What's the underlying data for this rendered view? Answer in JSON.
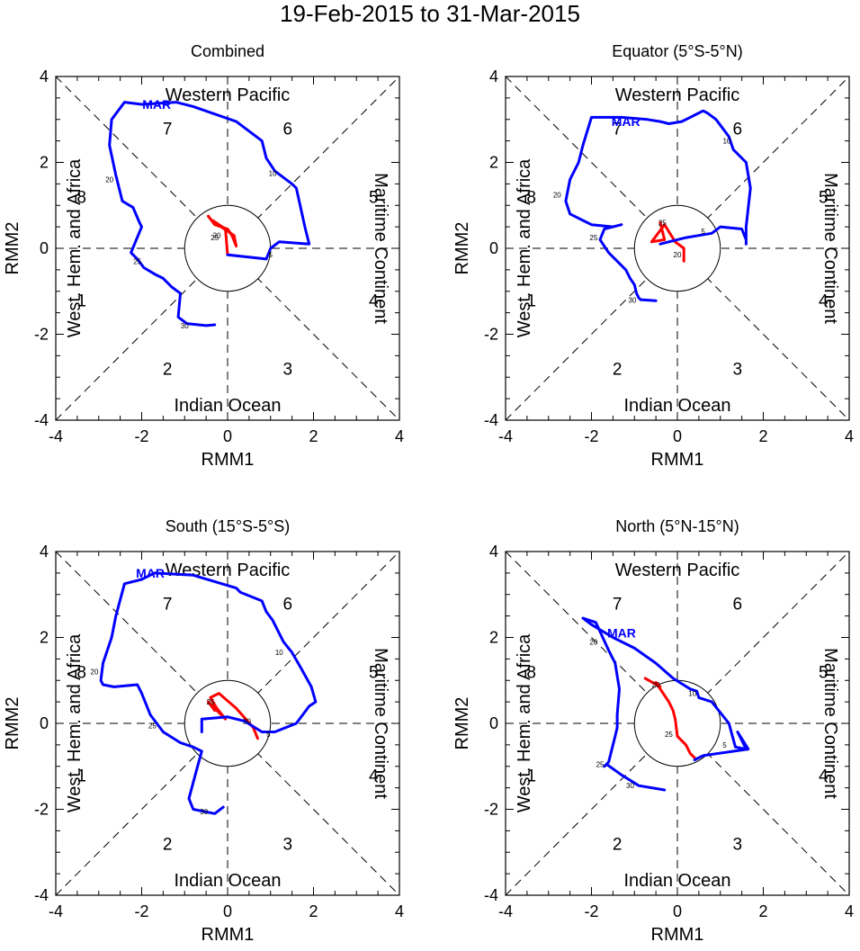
{
  "figure_title": "19-Feb-2015 to 31-Mar-2015",
  "colors": {
    "feb": "#ff0000",
    "mar": "#0000ff",
    "axis": "#000000"
  },
  "chart_data": [
    {
      "type": "line",
      "title": "Combined",
      "xlabel": "RMM1",
      "ylabel": "RMM2",
      "xlim": [
        -4,
        4
      ],
      "ylim": [
        -4,
        4
      ],
      "xticks": [
        "-4",
        "-2",
        "0",
        "2",
        "4"
      ],
      "yticks": [
        "-4",
        "-2",
        "0",
        "2",
        "4"
      ],
      "phase_numbers": [
        "1",
        "2",
        "3",
        "4",
        "5",
        "6",
        "7",
        "8"
      ],
      "region_labels": {
        "top": "Western Pacific",
        "bottom": "Indian Ocean",
        "left": "West. Hem. and Africa",
        "right": "Maritime Continent"
      },
      "month_label": "MAR",
      "month_label_pos": [
        -1.65,
        3.35
      ],
      "series": [
        {
          "name": "Feb",
          "color": "#ff0000",
          "x": [
            -0.45,
            -0.3,
            0.0,
            0.1,
            0.2,
            0.15,
            -0.15,
            -0.35,
            -0.05,
            0.0
          ],
          "y": [
            0.75,
            0.55,
            0.45,
            0.3,
            0.05,
            0.3,
            0.5,
            0.65,
            0.45,
            -0.15
          ]
        },
        {
          "name": "Mar",
          "color": "#0000ff",
          "x": [
            0.0,
            0.9,
            1.0,
            1.2,
            1.9,
            1.8,
            1.6,
            1.5,
            1.1,
            0.9,
            0.8,
            0.2,
            -0.8,
            -1.2,
            -2.0,
            -2.4,
            -2.7,
            -2.75,
            -2.6,
            -2.45,
            -2.2,
            -2.05,
            -2.0,
            -2.25,
            -2.1,
            -1.95,
            -1.7,
            -1.5,
            -1.3,
            -1.1,
            -1.15,
            -0.95,
            -0.5,
            -0.3
          ],
          "y": [
            -0.15,
            -0.25,
            0.0,
            0.15,
            0.1,
            0.5,
            1.4,
            1.5,
            1.8,
            2.1,
            2.5,
            2.95,
            3.3,
            3.4,
            3.35,
            3.4,
            3.0,
            2.4,
            1.7,
            1.1,
            0.95,
            0.6,
            0.5,
            -0.1,
            -0.25,
            -0.45,
            -0.6,
            -0.7,
            -0.9,
            -1.05,
            -1.6,
            -1.75,
            -1.8,
            -1.78
          ]
        }
      ],
      "day_labels": [
        {
          "text": "5",
          "x": 1.0,
          "y": -0.15
        },
        {
          "text": "10",
          "x": 1.05,
          "y": 1.75
        },
        {
          "text": "20",
          "x": -2.75,
          "y": 1.6
        },
        {
          "text": "25",
          "x": -2.1,
          "y": -0.3
        },
        {
          "text": "30",
          "x": -1.0,
          "y": -1.8
        },
        {
          "text": "20",
          "x": -0.25,
          "y": 0.3
        },
        {
          "text": "25",
          "x": -0.3,
          "y": 0.25
        }
      ]
    },
    {
      "type": "line",
      "title": "Equator (5°S-5°N)",
      "xlabel": "RMM1",
      "ylabel": "RMM2",
      "xlim": [
        -4,
        4
      ],
      "ylim": [
        -4,
        4
      ],
      "xticks": [
        "-4",
        "-2",
        "0",
        "2",
        "4"
      ],
      "yticks": [
        "-4",
        "-2",
        "0",
        "2",
        "4"
      ],
      "phase_numbers": [
        "1",
        "2",
        "3",
        "4",
        "5",
        "6",
        "7",
        "8"
      ],
      "region_labels": {
        "top": "Western Pacific",
        "bottom": "Indian Ocean",
        "left": "West. Hem. and Africa",
        "right": "Maritime Continent"
      },
      "month_label": "MAR",
      "month_label_pos": [
        -1.2,
        2.95
      ],
      "series": [
        {
          "name": "Feb",
          "color": "#ff0000",
          "x": [
            -0.4,
            -0.3,
            -0.6,
            -0.3,
            -0.05,
            0.15,
            0.15
          ],
          "y": [
            0.6,
            0.2,
            0.15,
            0.55,
            0.15,
            0.0,
            -0.3
          ]
        },
        {
          "name": "Mar",
          "color": "#0000ff",
          "x": [
            -0.4,
            0.2,
            0.5,
            0.8,
            1.0,
            1.5,
            1.6,
            1.6,
            1.6,
            1.7,
            1.6,
            1.3,
            1.2,
            0.9,
            0.7,
            0.6,
            0.4,
            0.1,
            -0.2,
            -0.4,
            -0.7,
            -1.3,
            -2.0,
            -2.2,
            -2.3,
            -2.5,
            -2.6,
            -2.5,
            -2.2,
            -2.0,
            -1.5,
            -1.3,
            -1.7,
            -1.8,
            -1.6,
            -1.4,
            -1.2,
            -1.1,
            -1.0,
            -0.95,
            -0.9,
            -0.85,
            -0.8,
            -0.5
          ],
          "y": [
            0.1,
            0.25,
            0.3,
            0.35,
            0.5,
            0.45,
            0.2,
            0.1,
            0.5,
            1.4,
            2.0,
            2.3,
            2.6,
            3.0,
            3.15,
            3.2,
            3.1,
            2.95,
            2.9,
            2.95,
            3.0,
            3.05,
            3.05,
            2.4,
            2.0,
            1.6,
            1.1,
            0.8,
            0.65,
            0.55,
            0.5,
            0.55,
            0.45,
            0.2,
            -0.1,
            -0.3,
            -0.5,
            -0.7,
            -0.85,
            -1.05,
            -1.15,
            -1.2,
            -1.2,
            -1.22
          ]
        }
      ],
      "day_labels": [
        {
          "text": "5",
          "x": 0.6,
          "y": 0.4
        },
        {
          "text": "10",
          "x": 1.15,
          "y": 2.5
        },
        {
          "text": "20",
          "x": -2.8,
          "y": 1.25
        },
        {
          "text": "25",
          "x": -1.95,
          "y": 0.25
        },
        {
          "text": "30",
          "x": -1.05,
          "y": -1.2
        },
        {
          "text": "25",
          "x": -0.35,
          "y": 0.6
        },
        {
          "text": "20",
          "x": 0.0,
          "y": -0.15
        }
      ]
    },
    {
      "type": "line",
      "title": "South (15°S-5°S)",
      "xlabel": "RMM1",
      "ylabel": "RMM2",
      "xlim": [
        -4,
        4
      ],
      "ylim": [
        -4,
        4
      ],
      "xticks": [
        "-4",
        "-2",
        "0",
        "2",
        "4"
      ],
      "yticks": [
        "-4",
        "-2",
        "0",
        "2",
        "4"
      ],
      "phase_numbers": [
        "1",
        "2",
        "3",
        "4",
        "5",
        "6",
        "7",
        "8"
      ],
      "region_labels": {
        "top": "Western Pacific",
        "bottom": "Indian Ocean",
        "left": "West. Hem. and Africa",
        "right": "Maritime Continent"
      },
      "month_label": "MAR",
      "month_label_pos": [
        -1.8,
        3.5
      ],
      "series": [
        {
          "name": "Feb",
          "color": "#ff0000",
          "x": [
            -0.3,
            -0.45,
            -0.05,
            -0.25,
            -0.4,
            -0.2,
            0.2,
            0.6,
            0.7
          ],
          "y": [
            0.3,
            0.5,
            0.1,
            0.35,
            0.6,
            0.7,
            0.35,
            -0.1,
            -0.35
          ]
        },
        {
          "name": "Mar",
          "color": "#0000ff",
          "x": [
            -0.6,
            -0.6,
            0.0,
            0.4,
            0.8,
            1.1,
            1.6,
            1.9,
            2.05,
            1.95,
            1.7,
            1.5,
            1.3,
            1.05,
            0.9,
            0.8,
            0.3,
            0.2,
            -0.8,
            -1.7,
            -2.0,
            -2.4,
            -2.6,
            -2.7,
            -2.9,
            -2.95,
            -2.9,
            -2.65,
            -2.1,
            -2.0,
            -1.8,
            -1.5,
            -1.1,
            -0.8,
            -0.6,
            -0.7,
            -0.9,
            -0.8,
            -0.3,
            -0.1
          ],
          "y": [
            -0.2,
            0.1,
            0.15,
            0.05,
            -0.2,
            -0.2,
            0.0,
            0.4,
            0.5,
            0.85,
            1.3,
            1.65,
            1.9,
            2.4,
            2.6,
            2.85,
            3.05,
            3.15,
            3.45,
            3.5,
            3.35,
            3.25,
            2.5,
            2.0,
            1.4,
            1.0,
            0.9,
            0.85,
            0.9,
            0.7,
            0.2,
            -0.2,
            -0.45,
            -0.55,
            -0.65,
            -1.0,
            -1.75,
            -2.0,
            -2.1,
            -1.95
          ]
        }
      ],
      "day_labels": [
        {
          "text": "5",
          "x": 0.95,
          "y": -0.25
        },
        {
          "text": "10",
          "x": 1.2,
          "y": 1.65
        },
        {
          "text": "20",
          "x": -3.1,
          "y": 1.2
        },
        {
          "text": "25",
          "x": -1.75,
          "y": -0.05
        },
        {
          "text": "30",
          "x": -0.55,
          "y": -2.05
        },
        {
          "text": "25",
          "x": -0.4,
          "y": 0.5
        },
        {
          "text": "20",
          "x": 0.45,
          "y": 0.05
        }
      ]
    },
    {
      "type": "line",
      "title": "North (5°N-15°N)",
      "xlabel": "RMM1",
      "ylabel": "RMM2",
      "xlim": [
        -4,
        4
      ],
      "ylim": [
        -4,
        4
      ],
      "xticks": [
        "-4",
        "-2",
        "0",
        "2",
        "4"
      ],
      "yticks": [
        "-4",
        "-2",
        "0",
        "2",
        "4"
      ],
      "phase_numbers": [
        "1",
        "2",
        "3",
        "4",
        "5",
        "6",
        "7",
        "8"
      ],
      "region_labels": {
        "top": "Western Pacific",
        "bottom": "Indian Ocean",
        "left": "West. Hem. and Africa",
        "right": "Maritime Continent"
      },
      "month_label": "MAR",
      "month_label_pos": [
        -1.3,
        2.1
      ],
      "series": [
        {
          "name": "Feb",
          "color": "#ff0000",
          "x": [
            -0.75,
            -0.4,
            -0.5,
            -0.2,
            -0.1,
            -0.05,
            0.0,
            0.2,
            0.3,
            0.4
          ],
          "y": [
            1.05,
            0.85,
            0.95,
            0.5,
            0.3,
            0.1,
            -0.3,
            -0.5,
            -0.7,
            -0.8
          ]
        },
        {
          "name": "Mar",
          "color": "#0000ff",
          "x": [
            0.4,
            0.6,
            1.65,
            1.4,
            1.6,
            1.35,
            1.2,
            0.8,
            0.5,
            0.45,
            0.3,
            -0.1,
            -0.5,
            -1.0,
            -1.5,
            -2.0,
            -2.2,
            -1.9,
            -1.6,
            -1.45,
            -1.35,
            -1.4,
            -1.4,
            -1.45,
            -1.5,
            -1.6,
            -1.7,
            -1.65,
            -1.3,
            -0.9,
            -0.3
          ],
          "y": [
            -0.85,
            -0.75,
            -0.6,
            -0.2,
            -0.6,
            -0.55,
            0.0,
            0.5,
            0.6,
            0.75,
            0.8,
            1.05,
            1.4,
            1.75,
            2.0,
            2.3,
            2.45,
            2.35,
            1.7,
            1.4,
            0.8,
            0.2,
            -0.1,
            -0.3,
            -0.5,
            -0.9,
            -1.0,
            -0.95,
            -1.2,
            -1.45,
            -1.55
          ]
        }
      ],
      "day_labels": [
        {
          "text": "5",
          "x": 1.1,
          "y": -0.5
        },
        {
          "text": "10",
          "x": 0.35,
          "y": 0.7
        },
        {
          "text": "20",
          "x": -1.95,
          "y": 1.9
        },
        {
          "text": "25",
          "x": -1.8,
          "y": -0.95
        },
        {
          "text": "30",
          "x": -1.1,
          "y": -1.45
        },
        {
          "text": "20",
          "x": -0.5,
          "y": 0.9
        },
        {
          "text": "25",
          "x": -0.2,
          "y": -0.25
        }
      ]
    }
  ]
}
